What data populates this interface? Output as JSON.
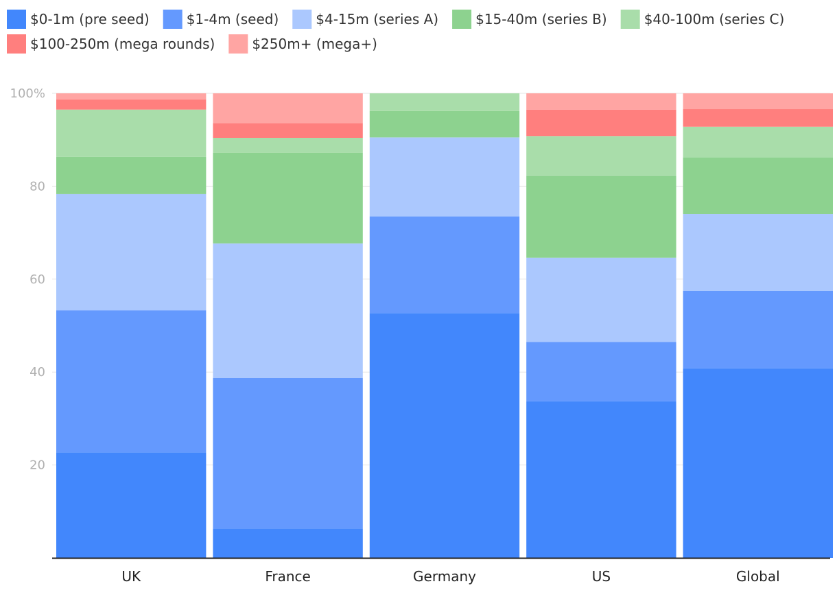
{
  "chart_data": {
    "type": "bar",
    "stacked": true,
    "normalized": true,
    "categories": [
      "UK",
      "France",
      "Germany",
      "US",
      "Global"
    ],
    "y_ticks": [
      "20",
      "40",
      "60",
      "80",
      "100%"
    ],
    "ylim": [
      0,
      100
    ],
    "grid": true,
    "legend_position": "top-left",
    "series": [
      {
        "name": "$0-1m (pre seed)",
        "color": "#4287fc",
        "values": [
          22.7,
          6.3,
          52.7,
          33.7,
          40.8
        ]
      },
      {
        "name": "$1-4m (seed)",
        "color": "#6499fe",
        "values": [
          30.6,
          32.4,
          20.8,
          12.8,
          16.7
        ]
      },
      {
        "name": "$4-15m (series A)",
        "color": "#abc8fe",
        "values": [
          25.0,
          29.0,
          17.0,
          18.1,
          16.5
        ]
      },
      {
        "name": "$15-40m (series B)",
        "color": "#8dd28f",
        "values": [
          8.0,
          19.5,
          5.7,
          17.7,
          12.2
        ]
      },
      {
        "name": "$40-100m (series C)",
        "color": "#a9ddaa",
        "values": [
          10.2,
          3.2,
          3.8,
          8.5,
          6.6
        ]
      },
      {
        "name": "$100-250m (mega rounds)",
        "color": "#ff7f7e",
        "values": [
          2.2,
          3.2,
          0.0,
          5.7,
          3.8
        ]
      },
      {
        "name": "$250m+ (mega+)",
        "color": "#ffa5a3",
        "values": [
          1.3,
          6.4,
          0.0,
          3.5,
          3.4
        ]
      }
    ]
  }
}
